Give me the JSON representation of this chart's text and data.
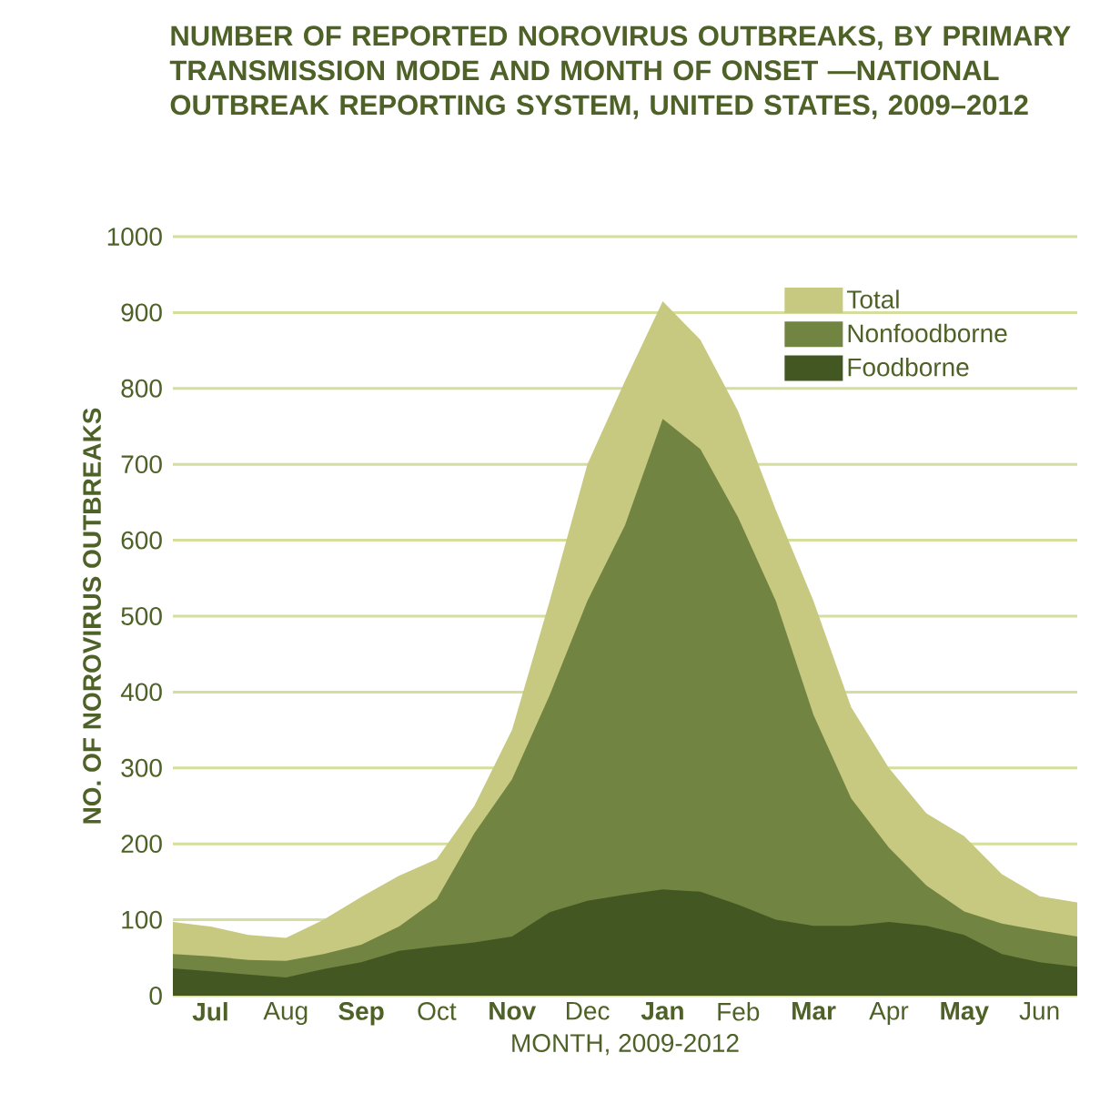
{
  "chart_data": {
    "type": "area",
    "title": "NUMBER OF REPORTED NOROVIRUS OUTBREAKS, BY PRIMARY TRANSMISSION MODE AND MONTH OF ONSET —NATIONAL OUTBREAK REPORTING SYSTEM, UNITED STATES, 2009–2012",
    "xlabel": "MONTH, 2009-2012",
    "ylabel": "NO. OF NOROVIRUS OUTBREAKS",
    "categories": [
      null,
      "Jul",
      null,
      "Aug",
      null,
      "Sep",
      null,
      "Oct",
      null,
      "Nov",
      null,
      "Dec",
      null,
      "Jan",
      null,
      "Feb",
      null,
      "Mar",
      null,
      "Apr",
      null,
      "May",
      null,
      "Jun",
      null
    ],
    "series": [
      {
        "name": "Total",
        "color": "#c6c97f",
        "values": [
          97,
          91,
          80,
          76,
          100,
          130,
          158,
          180,
          250,
          350,
          520,
          700,
          810,
          915,
          864,
          770,
          640,
          520,
          380,
          300,
          240,
          210,
          160,
          131,
          123
        ]
      },
      {
        "name": "Nonfoodborne",
        "color": "#728442",
        "values": [
          55,
          52,
          47,
          46,
          55,
          67,
          91,
          127,
          214,
          285,
          396,
          520,
          620,
          760,
          720,
          630,
          520,
          370,
          260,
          195,
          145,
          111,
          95,
          86,
          78
        ]
      },
      {
        "name": "Foodborne",
        "color": "#435723",
        "values": [
          36,
          32,
          28,
          24,
          35,
          44,
          59,
          65,
          70,
          78,
          110,
          125,
          133,
          140,
          137,
          120,
          100,
          92,
          92,
          97,
          92,
          80,
          55,
          44,
          38
        ]
      }
    ],
    "ylim": [
      0,
      1000
    ],
    "yticks": [
      0,
      100,
      200,
      300,
      400,
      500,
      600,
      700,
      800,
      900,
      1000
    ],
    "grid": "y",
    "legend": "top right"
  }
}
